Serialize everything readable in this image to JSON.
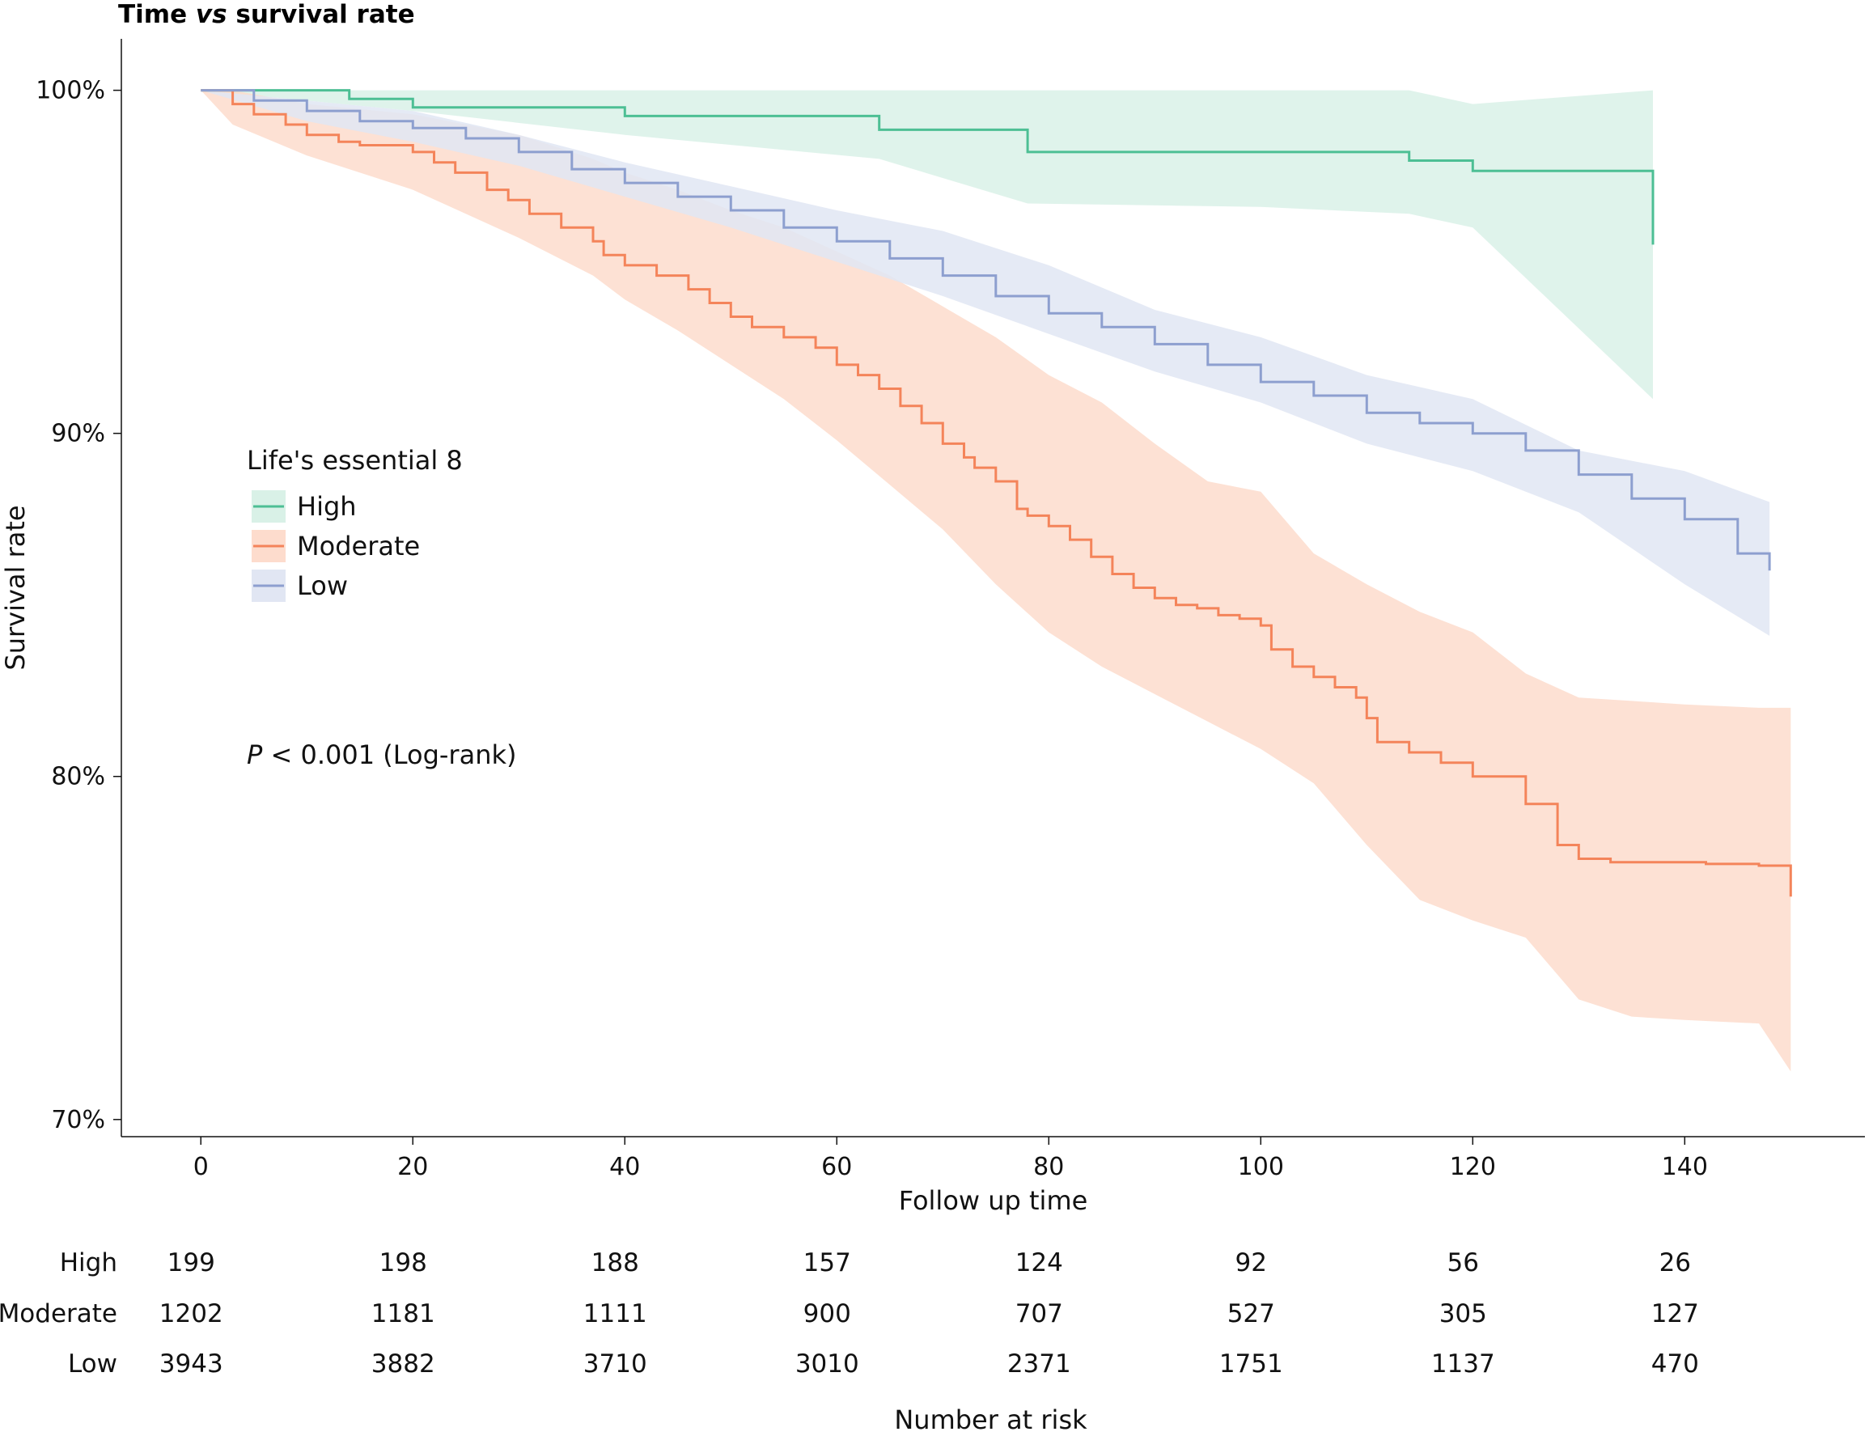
{
  "chart_data": {
    "type": "line",
    "title_parts": [
      {
        "text": "Time ",
        "italic": false
      },
      {
        "text": "vs",
        "italic": true
      },
      {
        "text": " survival rate",
        "italic": false
      }
    ],
    "xlabel": "Follow up time",
    "ylabel": "Survival rate",
    "xlim": [
      -7.5,
      157
    ],
    "ylim": [
      69.5,
      101.5
    ],
    "x_ticks": [
      0,
      20,
      40,
      60,
      80,
      100,
      120,
      140
    ],
    "x_tick_labels": [
      "0",
      "20",
      "40",
      "60",
      "80",
      "100",
      "120",
      "140"
    ],
    "y_ticks": [
      70,
      80,
      90,
      100
    ],
    "y_tick_labels": [
      "70%",
      "80%",
      "90%",
      "100%"
    ],
    "grid": false,
    "legend": {
      "title": "Life's essential 8",
      "position": "middle-left"
    },
    "annotation": {
      "italic_part": "P",
      "rest": " < 0.001 (Log-rank)"
    },
    "series": [
      {
        "name": "High",
        "color": "#4dbf94",
        "band_color": "#d9f1e7",
        "x": [
          0,
          14,
          20,
          40,
          64,
          78,
          114,
          120,
          137
        ],
        "y": [
          100,
          99.75,
          99.5,
          99.25,
          98.85,
          98.2,
          97.95,
          97.65,
          95.5
        ],
        "ci_x": [
          0,
          20,
          40,
          64,
          78,
          100,
          114,
          120,
          137
        ],
        "ci_lower": [
          100,
          99.4,
          98.7,
          98.0,
          96.7,
          96.6,
          96.4,
          96.0,
          91.0
        ],
        "ci_upper": [
          100,
          100,
          100,
          100,
          100,
          100,
          100,
          99.6,
          100
        ]
      },
      {
        "name": "Moderate",
        "color": "#f4845a",
        "band_color": "#fddccd",
        "x": [
          0,
          3,
          5,
          8,
          10,
          13,
          15,
          20,
          22,
          24,
          27,
          29,
          31,
          34,
          37,
          38,
          40,
          43,
          46,
          48,
          50,
          52,
          55,
          58,
          60,
          62,
          64,
          66,
          68,
          70,
          72,
          73,
          75,
          77,
          78,
          80,
          82,
          84,
          86,
          88,
          90,
          92,
          94,
          96,
          98,
          100,
          101,
          103,
          105,
          107,
          109,
          110,
          111,
          114,
          117,
          120,
          123,
          125,
          128,
          130,
          133,
          137,
          142,
          145,
          147,
          150
        ],
        "y": [
          100,
          99.6,
          99.3,
          99.0,
          98.7,
          98.5,
          98.4,
          98.2,
          97.9,
          97.6,
          97.1,
          96.8,
          96.4,
          96.0,
          95.6,
          95.2,
          94.9,
          94.6,
          94.2,
          93.8,
          93.4,
          93.1,
          92.8,
          92.5,
          92.0,
          91.7,
          91.3,
          90.8,
          90.3,
          89.7,
          89.3,
          89.0,
          88.6,
          87.8,
          87.6,
          87.3,
          86.9,
          86.4,
          85.9,
          85.5,
          85.2,
          85.0,
          84.9,
          84.7,
          84.6,
          84.4,
          83.7,
          83.2,
          82.9,
          82.6,
          82.3,
          81.7,
          81.0,
          80.7,
          80.4,
          80.0,
          80.0,
          79.2,
          78.0,
          77.6,
          77.5,
          77.5,
          77.45,
          77.45,
          77.4,
          76.5
        ],
        "ci_x": [
          0,
          3,
          10,
          20,
          30,
          37,
          40,
          45,
          50,
          55,
          60,
          65,
          70,
          75,
          80,
          85,
          90,
          95,
          100,
          105,
          110,
          115,
          120,
          125,
          130,
          135,
          140,
          147,
          150
        ],
        "ci_lower": [
          100,
          99.0,
          98.1,
          97.1,
          95.7,
          94.6,
          93.9,
          93.0,
          92.0,
          91.0,
          89.8,
          88.5,
          87.2,
          85.6,
          84.2,
          83.2,
          82.4,
          81.6,
          80.8,
          79.8,
          78.0,
          76.4,
          75.8,
          75.3,
          73.5,
          73.0,
          72.9,
          72.8,
          71.4
        ],
        "ci_upper": [
          100,
          100,
          99.6,
          99.3,
          98.7,
          98.0,
          97.6,
          97.1,
          96.5,
          96.0,
          95.3,
          94.6,
          93.7,
          92.8,
          91.7,
          90.9,
          89.7,
          88.6,
          88.3,
          86.5,
          85.6,
          84.8,
          84.2,
          83.0,
          82.3,
          82.2,
          82.1,
          82.0,
          82.0
        ]
      },
      {
        "name": "Low",
        "color": "#8d9fcf",
        "band_color": "#e1e6f3",
        "x": [
          0,
          5,
          10,
          15,
          20,
          25,
          30,
          35,
          40,
          45,
          50,
          55,
          60,
          65,
          70,
          75,
          80,
          85,
          90,
          95,
          100,
          105,
          110,
          115,
          120,
          125,
          130,
          135,
          140,
          145,
          148
        ],
        "y": [
          100,
          99.7,
          99.4,
          99.1,
          98.9,
          98.6,
          98.2,
          97.7,
          97.3,
          96.9,
          96.5,
          96.0,
          95.6,
          95.1,
          94.6,
          94.0,
          93.5,
          93.1,
          92.6,
          92.0,
          91.5,
          91.1,
          90.6,
          90.3,
          90.0,
          89.5,
          88.8,
          88.1,
          87.5,
          86.5,
          86.0
        ],
        "ci_x": [
          0,
          10,
          20,
          30,
          40,
          50,
          60,
          70,
          80,
          90,
          100,
          110,
          120,
          130,
          140,
          148
        ],
        "ci_lower": [
          100,
          99.1,
          98.5,
          97.8,
          96.9,
          96.0,
          95.0,
          94.0,
          92.9,
          91.8,
          90.9,
          89.7,
          88.9,
          87.7,
          85.6,
          84.1
        ],
        "ci_upper": [
          100,
          99.7,
          99.4,
          98.7,
          97.9,
          97.2,
          96.5,
          95.9,
          94.9,
          93.6,
          92.8,
          91.7,
          91.0,
          89.5,
          88.9,
          88.0
        ]
      }
    ],
    "risk_table": {
      "xlabel": "Number at risk",
      "times": [
        0,
        20,
        40,
        60,
        80,
        100,
        120,
        140
      ],
      "rows": [
        {
          "label": "High",
          "values": [
            "199",
            "198",
            "188",
            "157",
            "124",
            "92",
            "56",
            "26"
          ]
        },
        {
          "label": "Moderate",
          "values": [
            "1202",
            "1181",
            "1111",
            "900",
            "707",
            "527",
            "305",
            "127"
          ]
        },
        {
          "label": "Low",
          "values": [
            "3943",
            "3882",
            "3710",
            "3010",
            "2371",
            "1751",
            "1137",
            "470"
          ]
        }
      ]
    }
  }
}
